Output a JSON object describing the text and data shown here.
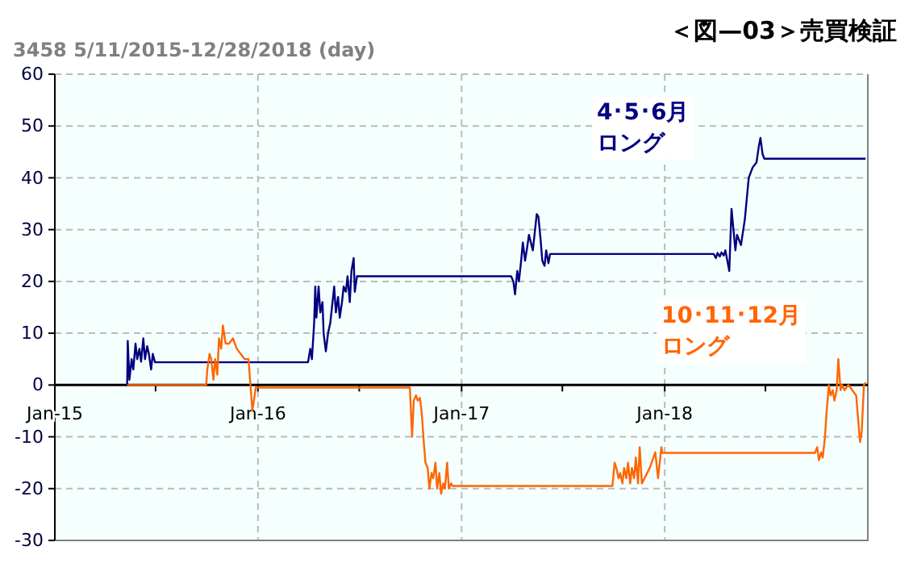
{
  "chart_data": {
    "type": "line",
    "title": "＜図—03＞売買検証",
    "subtitle": "3458 5/11/2015-12/28/2018 (day)",
    "xlim": [
      "2015-01-01",
      "2019-01-01"
    ],
    "xticks": [
      {
        "value": "2015-01-01",
        "label": "Jan-15"
      },
      {
        "value": "2015-07-01",
        "label": null
      },
      {
        "value": "2016-01-01",
        "label": "Jan-16"
      },
      {
        "value": "2016-07-01",
        "label": null
      },
      {
        "value": "2017-01-01",
        "label": "Jan-17"
      },
      {
        "value": "2017-07-01",
        "label": null
      },
      {
        "value": "2018-01-01",
        "label": "Jan-18"
      },
      {
        "value": "2018-07-01",
        "label": null
      }
    ],
    "ylim": [
      -30,
      60
    ],
    "yticks": [
      -30,
      -20,
      -10,
      0,
      10,
      20,
      30,
      40,
      50,
      60
    ],
    "grid": true,
    "line_style": "solid",
    "series": [
      {
        "name": "4･5･6月ロング",
        "color": "#000080",
        "x": [
          "2015-05-11",
          "2015-05-12",
          "2015-05-15",
          "2015-05-19",
          "2015-05-22",
          "2015-05-26",
          "2015-05-29",
          "2015-06-02",
          "2015-06-05",
          "2015-06-09",
          "2015-06-12",
          "2015-06-16",
          "2015-06-19",
          "2015-06-23",
          "2015-06-26",
          "2015-06-30",
          "2016-03-31",
          "2016-04-04",
          "2016-04-07",
          "2016-04-11",
          "2016-04-13",
          "2016-04-15",
          "2016-04-19",
          "2016-04-22",
          "2016-04-26",
          "2016-04-28",
          "2016-05-02",
          "2016-05-06",
          "2016-05-10",
          "2016-05-13",
          "2016-05-17",
          "2016-05-20",
          "2016-05-24",
          "2016-05-27",
          "2016-05-31",
          "2016-06-03",
          "2016-06-07",
          "2016-06-10",
          "2016-06-14",
          "2016-06-17",
          "2016-06-21",
          "2016-06-23",
          "2016-06-27",
          "2016-06-30",
          "2017-03-31",
          "2017-04-04",
          "2017-04-07",
          "2017-04-11",
          "2017-04-14",
          "2017-04-18",
          "2017-04-21",
          "2017-04-25",
          "2017-04-28",
          "2017-05-02",
          "2017-05-09",
          "2017-05-12",
          "2017-05-16",
          "2017-05-19",
          "2017-05-23",
          "2017-05-26",
          "2017-05-30",
          "2017-06-02",
          "2017-06-06",
          "2017-06-09",
          "2018-03-30",
          "2018-04-03",
          "2018-04-06",
          "2018-04-10",
          "2018-04-13",
          "2018-04-17",
          "2018-04-20",
          "2018-04-27",
          "2018-05-01",
          "2018-05-08",
          "2018-05-11",
          "2018-05-18",
          "2018-05-25",
          "2018-06-01",
          "2018-06-08",
          "2018-06-15",
          "2018-06-19",
          "2018-06-22",
          "2018-06-26",
          "2018-06-29",
          "2018-12-28"
        ],
        "values": [
          0,
          8.5,
          1,
          5,
          3,
          8,
          5,
          7,
          4.5,
          9,
          5,
          7.5,
          6,
          3,
          6,
          4.4,
          4.4,
          7,
          5,
          12,
          19,
          13,
          19,
          14,
          16,
          10,
          6.5,
          10,
          12,
          15,
          19,
          14,
          17,
          13,
          16,
          19,
          18,
          21,
          16,
          22,
          24.5,
          18,
          21,
          21,
          21,
          20,
          17.5,
          22,
          20,
          24,
          27.5,
          24,
          26,
          29,
          26,
          29,
          33,
          32.5,
          28,
          24,
          23,
          26,
          23.5,
          25.3,
          25.3,
          24.5,
          25.5,
          24.8,
          25.6,
          25,
          26,
          22,
          34,
          26,
          29,
          27,
          32,
          40,
          42,
          43,
          46,
          47.7,
          44.5,
          43.7,
          43.7
        ]
      },
      {
        "name": "10･11･12月ロング",
        "color": "#ff6600",
        "x": [
          "2015-05-11",
          "2015-09-30",
          "2015-10-02",
          "2015-10-06",
          "2015-10-09",
          "2015-10-13",
          "2015-10-16",
          "2015-10-20",
          "2015-10-23",
          "2015-10-27",
          "2015-10-30",
          "2015-11-04",
          "2015-11-10",
          "2015-11-17",
          "2015-11-24",
          "2015-12-01",
          "2015-12-08",
          "2015-12-15",
          "2015-12-22",
          "2015-12-28",
          "2016-09-30",
          "2016-10-04",
          "2016-10-07",
          "2016-10-11",
          "2016-10-14",
          "2016-10-18",
          "2016-10-21",
          "2016-10-25",
          "2016-10-28",
          "2016-11-01",
          "2016-11-04",
          "2016-11-08",
          "2016-11-11",
          "2016-11-15",
          "2016-11-18",
          "2016-11-22",
          "2016-11-25",
          "2016-11-29",
          "2016-12-02",
          "2016-12-06",
          "2016-12-09",
          "2016-12-13",
          "2016-12-16",
          "2017-09-29",
          "2017-10-03",
          "2017-10-06",
          "2017-10-10",
          "2017-10-13",
          "2017-10-17",
          "2017-10-20",
          "2017-10-24",
          "2017-10-27",
          "2017-10-31",
          "2017-11-03",
          "2017-11-07",
          "2017-11-10",
          "2017-11-14",
          "2017-11-17",
          "2017-11-21",
          "2017-12-05",
          "2017-12-15",
          "2017-12-20",
          "2017-12-26",
          "2017-12-28",
          "2018-09-28",
          "2018-10-02",
          "2018-10-05",
          "2018-10-09",
          "2018-10-12",
          "2018-10-16",
          "2018-10-19",
          "2018-10-23",
          "2018-10-26",
          "2018-10-30",
          "2018-11-02",
          "2018-11-06",
          "2018-11-09",
          "2018-11-13",
          "2018-11-16",
          "2018-11-20",
          "2018-11-27",
          "2018-12-04",
          "2018-12-11",
          "2018-12-18",
          "2018-12-21",
          "2018-12-25",
          "2018-12-28"
        ],
        "values": [
          0,
          0,
          3,
          6,
          5,
          1,
          5,
          2,
          9,
          7,
          11.5,
          8,
          8,
          9,
          7,
          6,
          5,
          5,
          -5,
          -0.5,
          -0.5,
          -10,
          -3,
          -2,
          -3,
          -2.5,
          -5,
          -11,
          -15,
          -16,
          -20,
          -17,
          -18,
          -15,
          -20,
          -17,
          -21,
          -19,
          -20,
          -15,
          -20,
          -19,
          -19.5,
          -19.5,
          -15,
          -16,
          -18,
          -17,
          -19,
          -16,
          -18,
          -15,
          -19,
          -16,
          -18,
          -14,
          -19,
          -12,
          -19,
          -16,
          -13,
          -18,
          -12,
          -13.1,
          -13.1,
          -12,
          -14.5,
          -13,
          -14,
          -10,
          -5,
          0,
          -2,
          -1,
          -3,
          -1,
          5,
          -1,
          0,
          -1,
          0,
          -1,
          -2,
          -11,
          -9,
          0,
          0.5
        ]
      }
    ]
  }
}
